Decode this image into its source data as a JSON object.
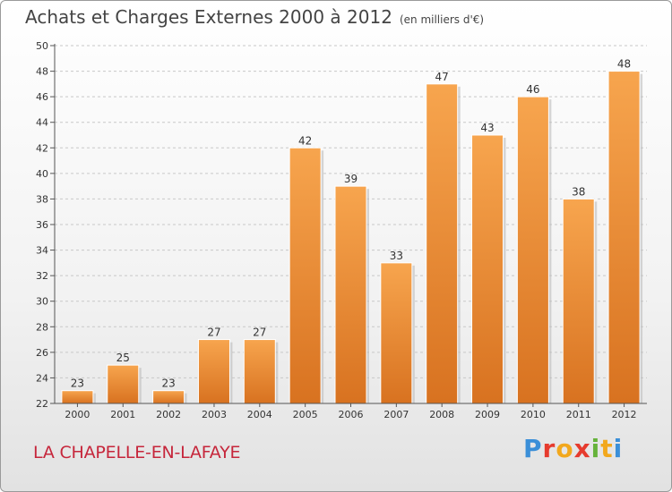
{
  "header": {
    "title": "Achats et Charges Externes 2000 à 2012",
    "subtitle": "(en milliers d'€)"
  },
  "footer": {
    "place": "LA CHAPELLE-EN-LAFAYE",
    "logo": "Proxiti"
  },
  "colors": {
    "bar_top": "#f7a54e",
    "bar_bottom": "#d87220",
    "place_text": "#c6263b"
  },
  "chart_data": {
    "type": "bar",
    "title": "Achats et Charges Externes 2000 à 2012",
    "subtitle": "(en milliers d'€)",
    "categories": [
      "2000",
      "2001",
      "2002",
      "2003",
      "2004",
      "2005",
      "2006",
      "2007",
      "2008",
      "2009",
      "2010",
      "2011",
      "2012"
    ],
    "values": [
      23,
      25,
      23,
      27,
      27,
      42,
      39,
      33,
      47,
      43,
      46,
      38,
      48
    ],
    "ylim": [
      22,
      50
    ],
    "yticks": [
      22,
      24,
      26,
      28,
      30,
      32,
      34,
      36,
      38,
      40,
      42,
      44,
      46,
      48,
      50
    ],
    "grid": "horizontal-dashed",
    "data_labels": true
  }
}
